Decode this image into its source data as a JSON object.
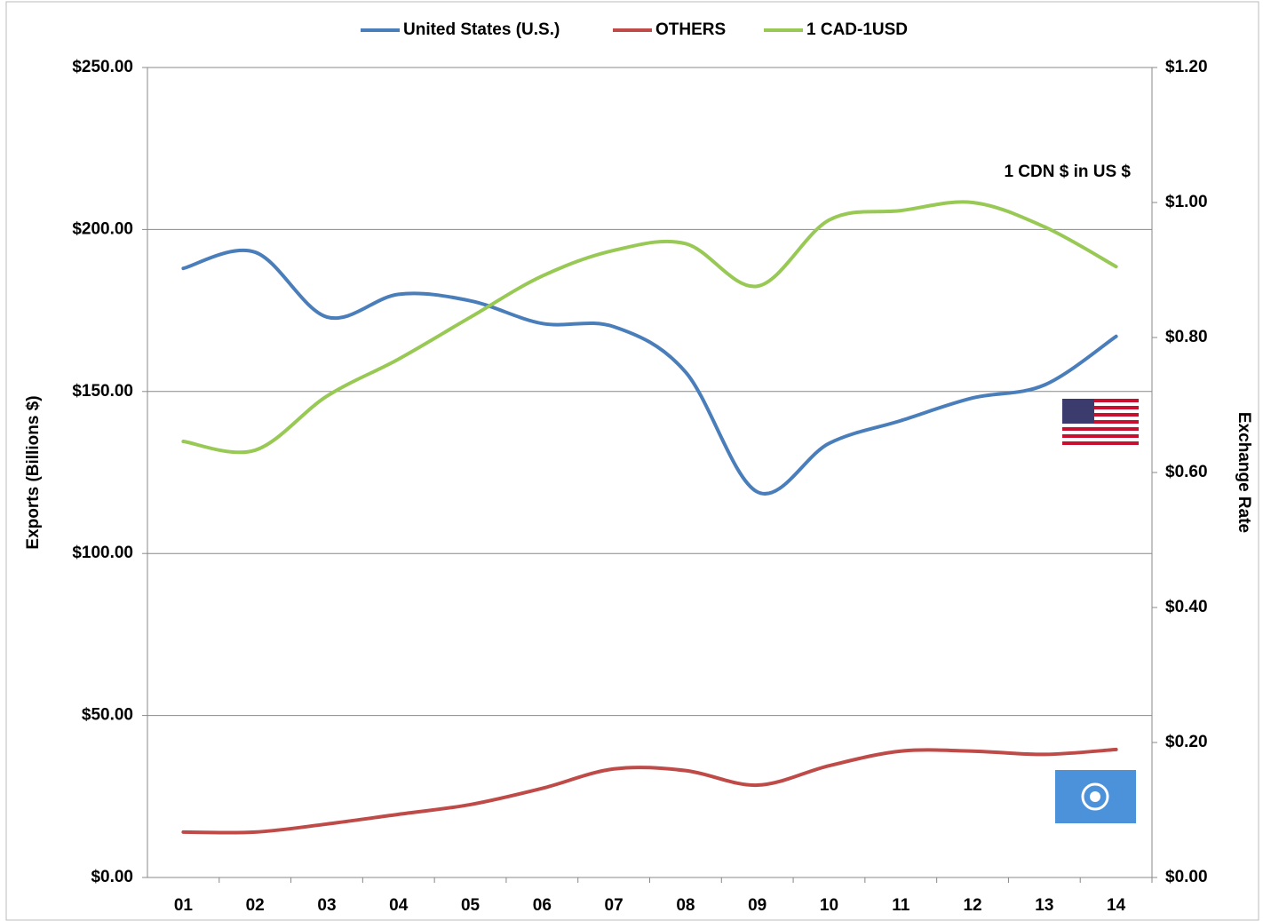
{
  "chart_data": {
    "type": "line",
    "annotation": "1 CDN $ in US $",
    "ylabel": "Exports (Billions $)",
    "y2label": "Exchange Rate",
    "categories": [
      "01",
      "02",
      "03",
      "04",
      "05",
      "06",
      "07",
      "08",
      "09",
      "10",
      "11",
      "12",
      "13",
      "14"
    ],
    "series": [
      {
        "name": "United States (U.S.)",
        "color": "#4a7ebb",
        "values": [
          188,
          193,
          173,
          180,
          178,
          171,
          170,
          156,
          119,
          134,
          141,
          148,
          152,
          167
        ]
      },
      {
        "name": "OTHERS",
        "color": "#be4b48",
        "values": [
          14,
          14,
          16.5,
          19.5,
          22.5,
          27.5,
          33.5,
          33,
          28.5,
          34.5,
          39,
          39,
          38,
          39.5
        ]
      },
      {
        "name": "1 CAD-1USD",
        "color": "#98c954",
        "axis": "y2",
        "values": [
          0.646,
          0.633,
          0.713,
          0.768,
          0.83,
          0.891,
          0.929,
          0.939,
          0.876,
          0.974,
          0.988,
          1.0,
          0.964,
          0.905
        ]
      }
    ],
    "ylim": [
      0,
      250
    ],
    "yticks": [
      {
        "value": 0,
        "label": "$0.00"
      },
      {
        "value": 50,
        "label": "$50.00"
      },
      {
        "value": 100,
        "label": "$100.00"
      },
      {
        "value": 150,
        "label": "$150.00"
      },
      {
        "value": 200,
        "label": "$200.00"
      },
      {
        "value": 250,
        "label": "$250.00"
      }
    ],
    "y2lim": [
      0,
      1.2
    ],
    "y2ticks": [
      {
        "value": 0,
        "label": "$0.00"
      },
      {
        "value": 0.2,
        "label": "$0.20"
      },
      {
        "value": 0.4,
        "label": "$0.40"
      },
      {
        "value": 0.6,
        "label": "$0.60"
      },
      {
        "value": 0.8,
        "label": "$0.80"
      },
      {
        "value": 1.0,
        "label": "$1.00"
      },
      {
        "value": 1.2,
        "label": "$1.20"
      }
    ],
    "grid": true,
    "legend": "top"
  }
}
